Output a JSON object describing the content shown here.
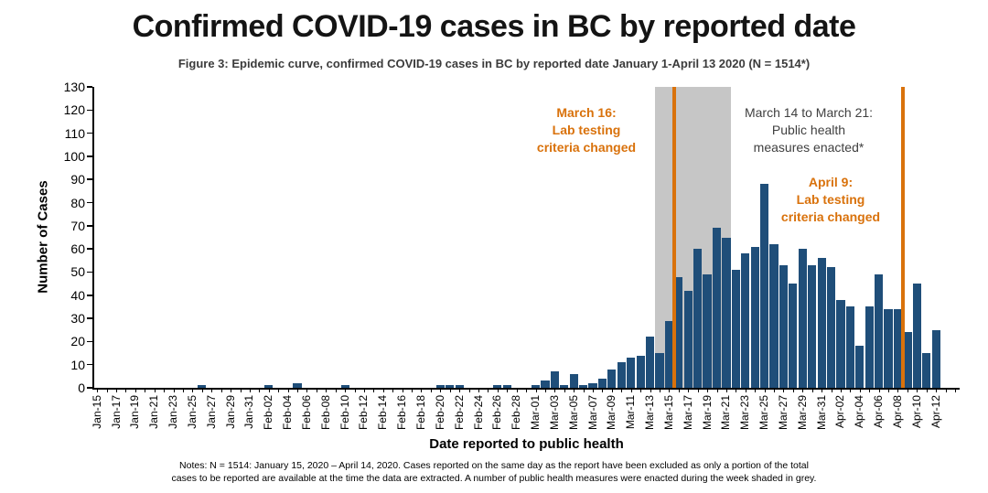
{
  "title": "Confirmed COVID-19 cases in BC by reported date",
  "subtitle": "Figure 3: Epidemic curve, confirmed COVID-19 cases in BC by reported date January 1-April 13 2020 (N = 1514*)",
  "notes": {
    "line1": "Notes: N = 1514: January 15, 2020 – April 14, 2020.  Cases reported on the same day as the report have been excluded as only a portion of the total",
    "line2": "cases to be reported are available at the time the data are extracted. A number of public health measures were enacted during the week shaded in grey."
  },
  "chart_data": {
    "type": "bar",
    "title": "Figure 3: Epidemic curve, confirmed COVID-19 cases in BC by reported date January 1-April 13 2020 (N = 1514*)",
    "xlabel": "Date reported to public health",
    "ylabel": "Number of Cases",
    "ylim": [
      0,
      130
    ],
    "yticks": [
      0,
      10,
      20,
      30,
      40,
      50,
      60,
      70,
      80,
      90,
      100,
      110,
      120,
      130
    ],
    "xtick_label_every": 2,
    "grid": false,
    "bar_color": "#1f4e79",
    "axis_color": "#000000",
    "categories": [
      "Jan-15",
      "Jan-16",
      "Jan-17",
      "Jan-18",
      "Jan-19",
      "Jan-20",
      "Jan-21",
      "Jan-22",
      "Jan-23",
      "Jan-24",
      "Jan-25",
      "Jan-26",
      "Jan-27",
      "Jan-28",
      "Jan-29",
      "Jan-30",
      "Jan-31",
      "Feb-01",
      "Feb-02",
      "Feb-03",
      "Feb-04",
      "Feb-05",
      "Feb-06",
      "Feb-07",
      "Feb-08",
      "Feb-09",
      "Feb-10",
      "Feb-11",
      "Feb-12",
      "Feb-13",
      "Feb-14",
      "Feb-15",
      "Feb-16",
      "Feb-17",
      "Feb-18",
      "Feb-19",
      "Feb-20",
      "Feb-21",
      "Feb-22",
      "Feb-23",
      "Feb-24",
      "Feb-25",
      "Feb-26",
      "Feb-27",
      "Feb-28",
      "Feb-29",
      "Mar-01",
      "Mar-02",
      "Mar-03",
      "Mar-04",
      "Mar-05",
      "Mar-06",
      "Mar-07",
      "Mar-08",
      "Mar-09",
      "Mar-10",
      "Mar-11",
      "Mar-12",
      "Mar-13",
      "Mar-14",
      "Mar-15",
      "Mar-16",
      "Mar-17",
      "Mar-18",
      "Mar-19",
      "Mar-20",
      "Mar-21",
      "Mar-22",
      "Mar-23",
      "Mar-24",
      "Mar-25",
      "Mar-26",
      "Mar-27",
      "Mar-28",
      "Mar-29",
      "Mar-30",
      "Mar-31",
      "Apr-01",
      "Apr-02",
      "Apr-03",
      "Apr-04",
      "Apr-05",
      "Apr-06",
      "Apr-07",
      "Apr-08",
      "Apr-09",
      "Apr-10",
      "Apr-11",
      "Apr-12",
      "Apr-13"
    ],
    "values": [
      0,
      0,
      0,
      0,
      0,
      0,
      0,
      0,
      0,
      0,
      0,
      1,
      0,
      0,
      0,
      0,
      0,
      0,
      1,
      0,
      0,
      2,
      0,
      0,
      0,
      0,
      1,
      0,
      0,
      0,
      0,
      0,
      0,
      0,
      0,
      0,
      1,
      1,
      1,
      0,
      0,
      0,
      1,
      1,
      0,
      0,
      1,
      3,
      7,
      1,
      6,
      1,
      2,
      4,
      8,
      11,
      13,
      14,
      22,
      15,
      29,
      48,
      42,
      60,
      49,
      69,
      65,
      51,
      58,
      61,
      88,
      62,
      53,
      45,
      60,
      53,
      56,
      52,
      38,
      35,
      18,
      35,
      49,
      34,
      34,
      24,
      45,
      15,
      25,
      0
    ],
    "shaded_band": {
      "from": "Mar-14",
      "to": "Mar-21",
      "color": "#c6c6c6",
      "annotation": [
        "March 14 to March 21:",
        "Public health",
        "measures enacted*"
      ],
      "annotation_color": "#404040"
    },
    "event_lines": [
      {
        "date": "Mar-16",
        "color": "#d9720c",
        "annotation": [
          "March 16:",
          "Lab testing",
          "criteria changed"
        ]
      },
      {
        "date": "Apr-09",
        "color": "#d9720c",
        "annotation": [
          "April 9:",
          "Lab testing",
          "criteria changed"
        ]
      }
    ]
  }
}
